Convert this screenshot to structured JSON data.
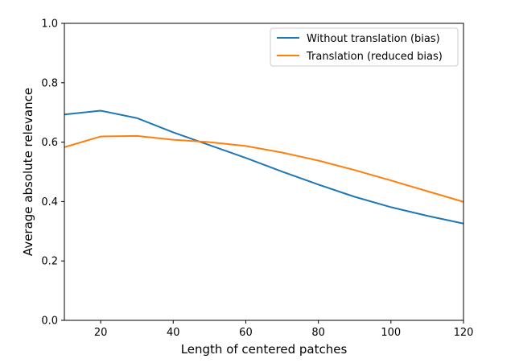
{
  "chart_data": {
    "type": "line",
    "title": "",
    "xlabel": "Length of centered patches",
    "ylabel": "Average absolute relevance",
    "xlim": [
      10,
      120
    ],
    "ylim": [
      0.0,
      1.0
    ],
    "x_ticks": [
      20,
      40,
      60,
      80,
      100,
      120
    ],
    "x_tick_labels": [
      "20",
      "40",
      "60",
      "80",
      "100",
      "120"
    ],
    "y_ticks": [
      0.0,
      0.2,
      0.4,
      0.6,
      0.8,
      1.0
    ],
    "y_tick_labels": [
      "0.0",
      "0.2",
      "0.4",
      "0.6",
      "0.8",
      "1.0"
    ],
    "grid": false,
    "legend_position": "top-right",
    "x": [
      10,
      20,
      30,
      40,
      50,
      60,
      70,
      80,
      90,
      100,
      110,
      120
    ],
    "series": [
      {
        "name": "Without translation (bias)",
        "color": "#1f77b4",
        "values": [
          0.693,
          0.706,
          0.681,
          0.633,
          0.59,
          0.547,
          0.501,
          0.457,
          0.416,
          0.381,
          0.352,
          0.326
        ]
      },
      {
        "name": "Translation (reduced bias)",
        "color": "#ff7f0e",
        "values": [
          0.583,
          0.619,
          0.621,
          0.608,
          0.6,
          0.587,
          0.565,
          0.538,
          0.506,
          0.471,
          0.435,
          0.399
        ]
      }
    ]
  }
}
